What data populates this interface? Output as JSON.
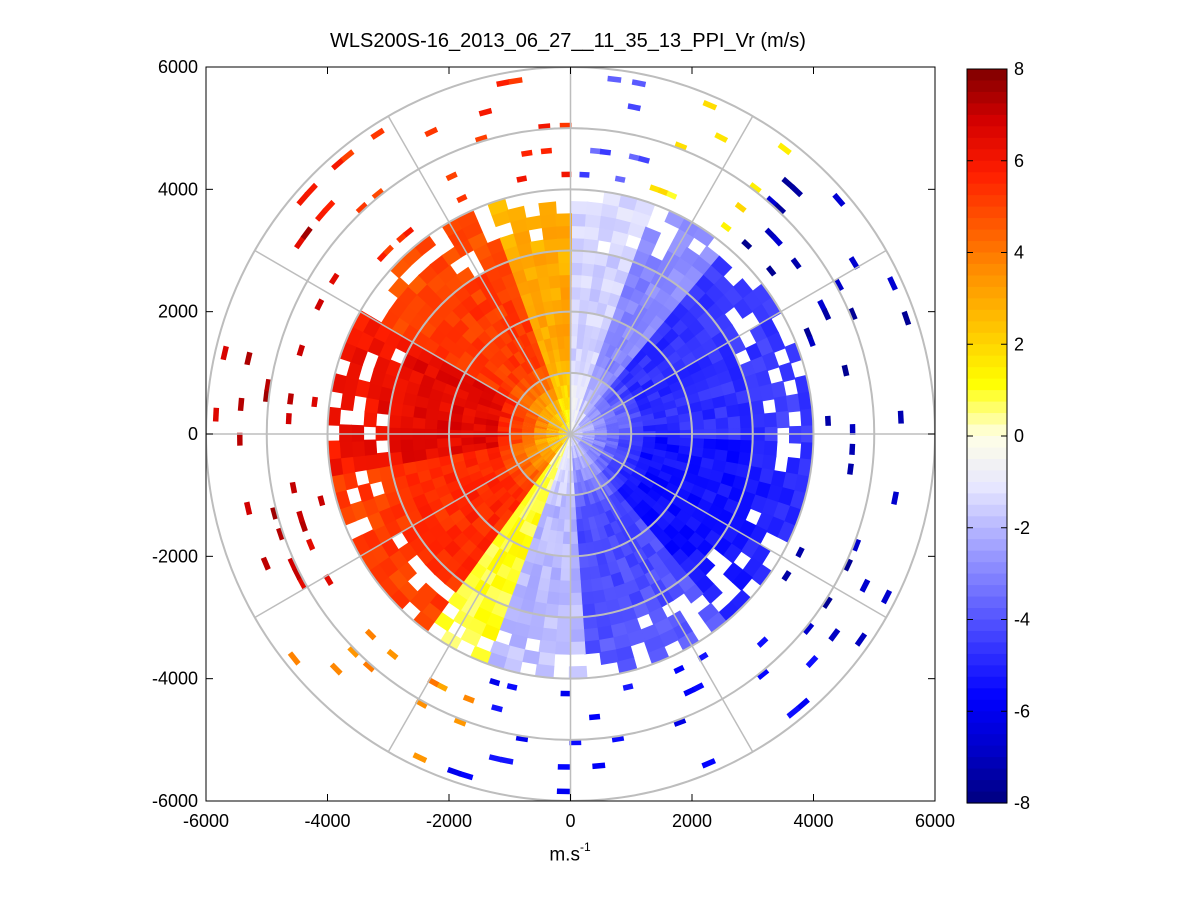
{
  "chart_data": {
    "type": "heatmap",
    "subtype": "polar-ppi",
    "title": "WLS200S-16_2013_06_27__11_35_13_PPI_Vr (m/s)",
    "xlabel_base": "m.s",
    "xlabel_sup": "-1",
    "ylabel": "",
    "xlim": [
      -6000,
      6000
    ],
    "ylim": [
      -6000,
      6000
    ],
    "x_ticks": [
      -6000,
      -4000,
      -2000,
      0,
      2000,
      4000,
      6000
    ],
    "y_ticks": [
      6000,
      4000,
      2000,
      0,
      -2000,
      -4000,
      -6000
    ],
    "range_rings": [
      1000,
      2000,
      3000,
      4000,
      5000,
      6000
    ],
    "spoke_angles_deg": [
      0,
      30,
      60,
      90,
      120,
      150,
      180,
      210,
      240,
      270,
      300,
      330
    ],
    "colorbar": {
      "min": -8,
      "max": 8,
      "ticks": [
        8,
        6,
        4,
        2,
        0,
        -2,
        -4,
        -6,
        -8
      ],
      "colormap": [
        "#00007f",
        "#0000c8",
        "#0000ff",
        "#3838ff",
        "#7070ff",
        "#a8a8ff",
        "#e6e6ff",
        "#ffffe6",
        "#ffff00",
        "#ffc800",
        "#ff9600",
        "#ff5a00",
        "#ff1e00",
        "#d40000",
        "#7f0000"
      ]
    },
    "field_model": {
      "description": "Radial velocity Vr (m/s) sampled on azimuth/range gates; positive (red) on the west half, negative (blue) on the east half",
      "inner_max_range_m": 4000,
      "azimuth_step_deg": 4,
      "range_step_m": 200,
      "outer_gate_step_m": 400,
      "sectors": [
        {
          "from_deg": 0,
          "to_deg": 20,
          "vr": -1.5
        },
        {
          "from_deg": 20,
          "to_deg": 40,
          "vr": -3.0
        },
        {
          "from_deg": 40,
          "to_deg": 90,
          "vr": -4.8
        },
        {
          "from_deg": 90,
          "to_deg": 140,
          "vr": -5.4
        },
        {
          "from_deg": 140,
          "to_deg": 175,
          "vr": -4.2
        },
        {
          "from_deg": 175,
          "to_deg": 200,
          "vr": -2.0
        },
        {
          "from_deg": 200,
          "to_deg": 215,
          "vr": 1.0
        },
        {
          "from_deg": 215,
          "to_deg": 260,
          "vr": 5.5
        },
        {
          "from_deg": 260,
          "to_deg": 300,
          "vr": 6.5
        },
        {
          "from_deg": 300,
          "to_deg": 340,
          "vr": 5.2
        },
        {
          "from_deg": 340,
          "to_deg": 360,
          "vr": 3.0
        }
      ],
      "outer_sectors": [
        {
          "from_deg": 0,
          "to_deg": 15,
          "vr": -4.0
        },
        {
          "from_deg": 15,
          "to_deg": 40,
          "vr": 1.5
        },
        {
          "from_deg": 40,
          "to_deg": 130,
          "vr": -7.2
        },
        {
          "from_deg": 130,
          "to_deg": 200,
          "vr": -5.8
        },
        {
          "from_deg": 200,
          "to_deg": 235,
          "vr": 3.5
        },
        {
          "from_deg": 235,
          "to_deg": 310,
          "vr": 7.0
        },
        {
          "from_deg": 310,
          "to_deg": 360,
          "vr": 5.5
        }
      ]
    }
  }
}
